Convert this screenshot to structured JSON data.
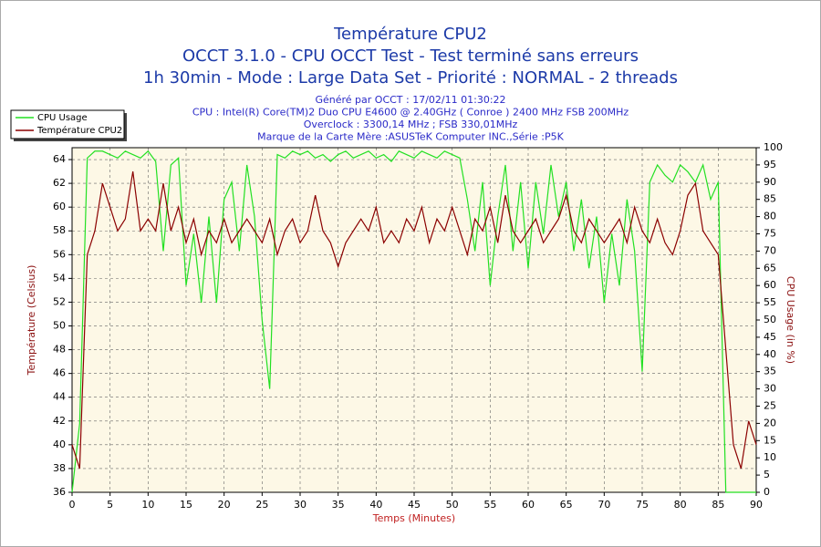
{
  "chart_data": {
    "type": "line",
    "title_lines": [
      "Température CPU2",
      "OCCT 3.1.0 - CPU OCCT Test - Test terminé sans erreurs",
      "1h 30min - Mode : Large Data Set - Priorité : NORMAL - 2 threads"
    ],
    "info_lines": [
      "Généré par OCCT : 17/02/11 01:30:22",
      "CPU : Intel(R) Core(TM)2 Duo CPU E4600 @ 2.40GHz ( Conroe ) 2400 MHz FSB 200MHz",
      "Overclock : 3300,14 MHz ; FSB 330,01MHz",
      "Marque de la Carte Mère :ASUSTeK Computer INC.,Série :P5K"
    ],
    "x_label": "Temps (Minutes)",
    "y_label": "Température (Celsius)",
    "y2_label": "CPU Usage (in %)",
    "x": [
      0,
      1,
      2,
      3,
      4,
      5,
      6,
      7,
      8,
      9,
      10,
      11,
      12,
      13,
      14,
      15,
      16,
      17,
      18,
      19,
      20,
      21,
      22,
      23,
      24,
      25,
      26,
      27,
      28,
      29,
      30,
      31,
      32,
      33,
      34,
      35,
      36,
      37,
      38,
      39,
      40,
      41,
      42,
      43,
      44,
      45,
      46,
      47,
      48,
      49,
      50,
      51,
      52,
      53,
      54,
      55,
      56,
      57,
      58,
      59,
      60,
      61,
      62,
      63,
      64,
      65,
      66,
      67,
      68,
      69,
      70,
      71,
      72,
      73,
      74,
      75,
      76,
      77,
      78,
      79,
      80,
      81,
      82,
      83,
      84,
      85,
      86,
      87,
      88,
      89,
      90
    ],
    "series": [
      {
        "name": "CPU Usage",
        "color": "#22e022",
        "axis": "y2",
        "values": [
          0,
          20,
          97,
          99,
          99,
          98,
          97,
          99,
          98,
          97,
          99,
          96,
          70,
          95,
          97,
          60,
          75,
          55,
          80,
          55,
          85,
          90,
          70,
          95,
          80,
          50,
          30,
          98,
          97,
          99,
          98,
          99,
          97,
          98,
          96,
          98,
          99,
          97,
          98,
          99,
          97,
          98,
          96,
          99,
          98,
          97,
          99,
          98,
          97,
          99,
          98,
          97,
          85,
          70,
          90,
          60,
          80,
          95,
          70,
          90,
          65,
          90,
          75,
          95,
          80,
          90,
          70,
          85,
          65,
          80,
          55,
          75,
          60,
          85,
          70,
          35,
          90,
          95,
          92,
          90,
          95,
          93,
          90,
          95,
          85,
          90,
          0,
          0,
          0,
          0,
          0
        ]
      },
      {
        "name": "Température CPU2",
        "color": "#8b0000",
        "axis": "y",
        "values": [
          40,
          38,
          56,
          58,
          62,
          60,
          58,
          59,
          63,
          58,
          59,
          58,
          62,
          58,
          60,
          57,
          59,
          56,
          58,
          57,
          59,
          57,
          58,
          59,
          58,
          57,
          59,
          56,
          58,
          59,
          57,
          58,
          61,
          58,
          57,
          55,
          57,
          58,
          59,
          58,
          60,
          57,
          58,
          57,
          59,
          58,
          60,
          57,
          59,
          58,
          60,
          58,
          56,
          59,
          58,
          60,
          57,
          61,
          58,
          57,
          58,
          59,
          57,
          58,
          59,
          61,
          58,
          57,
          59,
          58,
          57,
          58,
          59,
          57,
          60,
          58,
          57,
          59,
          57,
          56,
          58,
          61,
          62,
          58,
          57,
          56,
          48,
          40,
          38,
          42,
          40
        ]
      }
    ],
    "xlim": [
      0,
      90
    ],
    "xticks": [
      0,
      5,
      10,
      15,
      20,
      25,
      30,
      35,
      40,
      45,
      50,
      55,
      60,
      65,
      70,
      75,
      80,
      85,
      90
    ],
    "ylim": [
      36,
      65
    ],
    "yticks": [
      36,
      38,
      40,
      42,
      44,
      46,
      48,
      50,
      52,
      54,
      56,
      58,
      60,
      62,
      64
    ],
    "y2lim": [
      0,
      100
    ],
    "y2ticks": [
      0,
      5,
      10,
      15,
      20,
      25,
      30,
      35,
      40,
      45,
      50,
      55,
      60,
      65,
      70,
      75,
      80,
      85,
      90,
      95,
      100
    ],
    "grid": true,
    "legend": "top-left"
  }
}
